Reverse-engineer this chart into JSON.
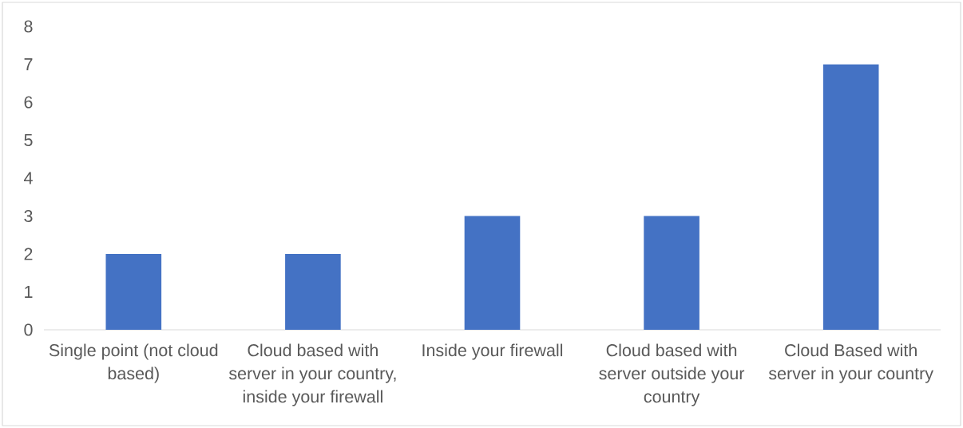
{
  "chart_data": {
    "type": "bar",
    "categories": [
      "Single point (not cloud based)",
      "Cloud based with server in your country, inside your firewall",
      "Inside your firewall",
      "Cloud based with server outside your country",
      "Cloud Based with server in your country"
    ],
    "values": [
      2,
      2,
      3,
      3,
      7
    ],
    "color": "#4472c4",
    "ylim": [
      0,
      8
    ],
    "yticks": [
      0,
      1,
      2,
      3,
      4,
      5,
      6,
      7,
      8
    ]
  }
}
